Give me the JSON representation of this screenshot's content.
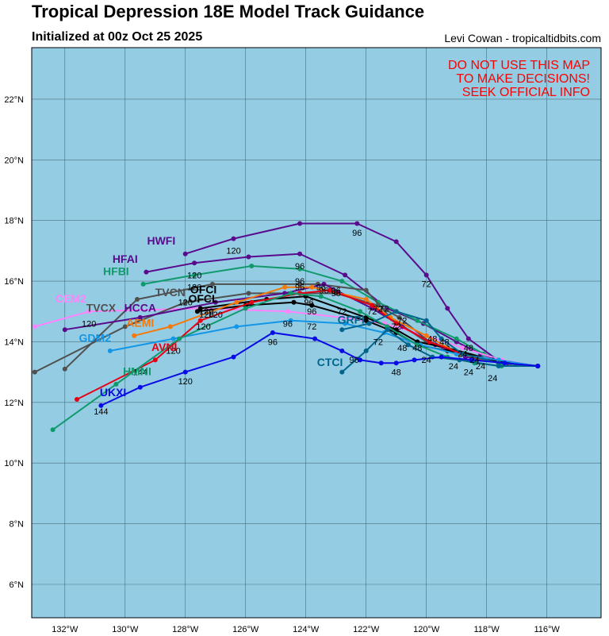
{
  "header": {
    "title": "Tropical Depression 18E Model Track Guidance",
    "subtitle": "Initialized at 00z Oct 25 2025",
    "credit": "Levi Cowan - tropicaltidbits.com"
  },
  "warning": [
    "DO NOT USE THIS MAP",
    "TO MAKE DECISIONS!",
    "SEEK OFFICIAL INFO"
  ],
  "map": {
    "lon_range": [
      -133.1,
      -114.2
    ],
    "lat_range": [
      4.9,
      23.7
    ],
    "ocean_color": "#94cde3",
    "grid_color": "#4a6e7c",
    "lon_ticks": [
      {
        "value": -132,
        "label": "132°W"
      },
      {
        "value": -130,
        "label": "130°W"
      },
      {
        "value": -128,
        "label": "128°W"
      },
      {
        "value": -126,
        "label": "126°W"
      },
      {
        "value": -124,
        "label": "124°W"
      },
      {
        "value": -122,
        "label": "122°W"
      },
      {
        "value": -120,
        "label": "120°W"
      },
      {
        "value": -118,
        "label": "118°W"
      },
      {
        "value": -116,
        "label": "116°W"
      }
    ],
    "lat_ticks": [
      {
        "value": 6,
        "label": "6°N"
      },
      {
        "value": 8,
        "label": "8°N"
      },
      {
        "value": 10,
        "label": "10°N"
      },
      {
        "value": 12,
        "label": "12°N"
      },
      {
        "value": 14,
        "label": "14°N"
      },
      {
        "value": 16,
        "label": "16°N"
      },
      {
        "value": 18,
        "label": "18°N"
      },
      {
        "value": 20,
        "label": "20°N"
      },
      {
        "value": 22,
        "label": "22°N"
      }
    ]
  },
  "models": [
    {
      "name": "HWFI",
      "color": "#5a0a8c",
      "track": [
        [
          -116.3,
          13.2
        ],
        [
          -117.5,
          13.3
        ],
        [
          -118.6,
          14.1
        ],
        [
          -119.3,
          15.1
        ],
        [
          -120.0,
          16.2
        ],
        [
          -121.0,
          17.3
        ],
        [
          -122.3,
          17.9
        ],
        [
          -124.2,
          17.9
        ],
        [
          -126.4,
          17.4
        ],
        [
          -128.0,
          16.9
        ]
      ],
      "hour_labels": [
        {
          "lon": -118.6,
          "lat": 13.7,
          "text": "48"
        },
        {
          "lon": -120.0,
          "lat": 15.8,
          "text": "72"
        },
        {
          "lon": -122.3,
          "lat": 17.5,
          "text": "96"
        },
        {
          "lon": -126.4,
          "lat": 16.9,
          "text": "120"
        }
      ],
      "name_pos": {
        "lon": -128.8,
        "lat": 17.2
      }
    },
    {
      "name": "HFAI",
      "color": "#5a0a8c",
      "track": [
        [
          -116.3,
          13.2
        ],
        [
          -117.3,
          13.3
        ],
        [
          -118.2,
          13.6
        ],
        [
          -119.0,
          14.0
        ],
        [
          -120.1,
          14.6
        ],
        [
          -121.3,
          15.1
        ],
        [
          -122.7,
          16.2
        ],
        [
          -124.2,
          16.9
        ],
        [
          -125.9,
          16.8
        ],
        [
          -127.7,
          16.6
        ],
        [
          -129.3,
          16.3
        ]
      ],
      "hour_labels": [
        {
          "lon": -124.2,
          "lat": 16.4,
          "text": "96"
        },
        {
          "lon": -127.7,
          "lat": 16.1,
          "text": "120"
        }
      ],
      "name_pos": {
        "lon": -130.0,
        "lat": 16.6
      }
    },
    {
      "name": "HFBI",
      "color": "#109a6c",
      "track": [
        [
          -116.3,
          13.2
        ],
        [
          -117.2,
          13.3
        ],
        [
          -118.1,
          13.6
        ],
        [
          -119.0,
          14.1
        ],
        [
          -120.3,
          14.7
        ],
        [
          -121.6,
          15.3
        ],
        [
          -122.8,
          16.0
        ],
        [
          -124.2,
          16.4
        ],
        [
          -125.8,
          16.5
        ],
        [
          -127.7,
          16.2
        ],
        [
          -129.4,
          15.9
        ]
      ],
      "hour_labels": [
        {
          "lon": -124.2,
          "lat": 15.9,
          "text": "96"
        },
        {
          "lon": -127.7,
          "lat": 15.7,
          "text": "120"
        }
      ],
      "name_pos": {
        "lon": -130.3,
        "lat": 16.2
      }
    },
    {
      "name": "CEM2",
      "color": "#ff82ff",
      "track": [
        [
          -116.3,
          13.2
        ],
        [
          -117.5,
          13.4
        ],
        [
          -118.8,
          13.8
        ],
        [
          -120.0,
          14.2
        ],
        [
          -121.4,
          14.6
        ],
        [
          -122.8,
          14.8
        ],
        [
          -124.6,
          15.0
        ],
        [
          -127.5,
          15.1
        ],
        [
          -131.2,
          15.0
        ],
        [
          -133.0,
          14.5
        ]
      ],
      "hour_labels": [
        {
          "lon": -124.6,
          "lat": 14.5,
          "text": "96"
        },
        {
          "lon": -131.2,
          "lat": 14.5,
          "text": "120"
        }
      ],
      "name_pos": {
        "lon": -131.8,
        "lat": 15.3
      }
    },
    {
      "name": "TVCX",
      "color": "#505050",
      "track": [
        [
          -116.3,
          13.2
        ],
        [
          -117.6,
          13.3
        ],
        [
          -118.9,
          13.6
        ],
        [
          -120.0,
          14.0
        ],
        [
          -121.2,
          14.8
        ],
        [
          -122.0,
          15.7
        ],
        [
          -123.6,
          15.9
        ],
        [
          -124.2,
          15.9
        ],
        [
          -127.1,
          15.9
        ],
        [
          -129.6,
          15.4
        ],
        [
          -132.0,
          13.1
        ]
      ],
      "hour_labels": [
        {
          "lon": -128.0,
          "lat": 15.2,
          "text": "120"
        }
      ],
      "name_pos": {
        "lon": -130.8,
        "lat": 15.0
      }
    },
    {
      "name": "TVCN",
      "color": "#505050",
      "track": [
        [
          -116.3,
          13.2
        ],
        [
          -117.5,
          13.3
        ],
        [
          -118.7,
          13.6
        ],
        [
          -119.9,
          14.0
        ],
        [
          -120.9,
          14.8
        ],
        [
          -121.6,
          15.2
        ],
        [
          -123.0,
          15.6
        ],
        [
          -124.2,
          15.6
        ],
        [
          -125.9,
          15.6
        ],
        [
          -128.0,
          15.3
        ],
        [
          -130.0,
          14.5
        ],
        [
          -133.0,
          13.0
        ]
      ],
      "hour_labels": [
        {
          "lon": -121.6,
          "lat": 15.0,
          "text": "72"
        }
      ],
      "name_pos": {
        "lon": -128.5,
        "lat": 15.5
      }
    },
    {
      "name": "HCCA",
      "color": "#5a0a8c",
      "track": [
        [
          -116.3,
          13.2
        ],
        [
          -117.5,
          13.3
        ],
        [
          -118.7,
          13.5
        ],
        [
          -119.7,
          13.9
        ],
        [
          -120.8,
          14.5
        ],
        [
          -121.8,
          15.1
        ],
        [
          -123.4,
          15.9
        ],
        [
          -124.7,
          15.6
        ],
        [
          -127.0,
          15.3
        ],
        [
          -129.5,
          14.8
        ],
        [
          -132.0,
          14.4
        ]
      ],
      "hour_labels": [
        {
          "lon": -123.4,
          "lat": 15.6,
          "text": "96"
        },
        {
          "lon": -127.0,
          "lat": 14.8,
          "text": "120"
        }
      ],
      "name_pos": {
        "lon": -129.5,
        "lat": 15.0
      }
    },
    {
      "name": "OFCL",
      "color": "#000000",
      "track": [
        [
          -116.3,
          13.2
        ],
        [
          -117.8,
          13.4
        ],
        [
          -119.3,
          13.7
        ],
        [
          -120.3,
          13.9
        ],
        [
          -121.0,
          14.3
        ],
        [
          -122.0,
          14.7
        ],
        [
          -123.8,
          15.2
        ],
        [
          -124.4,
          15.3
        ],
        [
          -126.0,
          15.2
        ],
        [
          -127.6,
          15.0
        ]
      ],
      "hour_labels": [
        {
          "lon": -123.8,
          "lat": 14.9,
          "text": "96"
        },
        {
          "lon": -127.3,
          "lat": 14.8,
          "text": "120"
        }
      ],
      "name_pos": {
        "lon": -127.4,
        "lat": 15.3
      }
    },
    {
      "name": "OFCI",
      "color": "#000000",
      "track": [
        [
          -116.3,
          13.2
        ],
        [
          -117.8,
          13.4
        ],
        [
          -119.3,
          13.8
        ],
        [
          -120.3,
          14.0
        ],
        [
          -121.0,
          14.4
        ],
        [
          -122.0,
          14.8
        ],
        [
          -124.0,
          15.5
        ],
        [
          -125.3,
          15.4
        ],
        [
          -127.5,
          15.1
        ]
      ],
      "hour_labels": [
        {
          "lon": -123.9,
          "lat": 15.2,
          "text": "96"
        },
        {
          "lon": -127.3,
          "lat": 14.9,
          "text": "120"
        }
      ],
      "name_pos": {
        "lon": -127.4,
        "lat": 15.6
      }
    },
    {
      "name": "AEMI",
      "color": "#f5780a",
      "track": [
        [
          -116.3,
          13.2
        ],
        [
          -117.6,
          13.3
        ],
        [
          -118.9,
          13.6
        ],
        [
          -120.0,
          14.2
        ],
        [
          -121.2,
          14.8
        ],
        [
          -122.0,
          15.4
        ],
        [
          -123.8,
          15.8
        ],
        [
          -124.7,
          15.8
        ],
        [
          -126.3,
          15.3
        ],
        [
          -128.5,
          14.5
        ],
        [
          -129.7,
          14.2
        ]
      ],
      "hour_labels": [
        {
          "lon": -123.0,
          "lat": 15.5,
          "text": "96"
        }
      ],
      "name_pos": {
        "lon": -129.5,
        "lat": 14.5
      }
    },
    {
      "name": "GDM2",
      "color": "#1496e6",
      "track": [
        [
          -116.3,
          13.2
        ],
        [
          -117.6,
          13.4
        ],
        [
          -119.0,
          13.6
        ],
        [
          -120.2,
          13.9
        ],
        [
          -121.4,
          14.3
        ],
        [
          -122.7,
          14.6
        ],
        [
          -124.5,
          14.7
        ],
        [
          -126.3,
          14.5
        ],
        [
          -128.4,
          14.1
        ],
        [
          -130.5,
          13.7
        ]
      ],
      "hour_labels": [
        {
          "lon": -123.8,
          "lat": 14.4,
          "text": "72"
        },
        {
          "lon": -128.4,
          "lat": 13.6,
          "text": "120"
        }
      ],
      "name_pos": {
        "lon": -131.0,
        "lat": 14.0
      }
    },
    {
      "name": "AVNI",
      "color": "#e60014",
      "track": [
        [
          -116.3,
          13.2
        ],
        [
          -117.6,
          13.3
        ],
        [
          -118.8,
          13.6
        ],
        [
          -119.9,
          14.0
        ],
        [
          -121.0,
          14.6
        ],
        [
          -121.8,
          15.2
        ],
        [
          -123.2,
          15.7
        ],
        [
          -124.2,
          15.6
        ],
        [
          -125.8,
          15.3
        ],
        [
          -127.5,
          14.7
        ],
        [
          -129.0,
          13.4
        ],
        [
          -131.6,
          12.1
        ]
      ],
      "hour_labels": [
        {
          "lon": -124.2,
          "lat": 15.7,
          "text": "96"
        },
        {
          "lon": -127.4,
          "lat": 14.4,
          "text": "120"
        },
        {
          "lon": -129.5,
          "lat": 12.9,
          "text": "144"
        }
      ],
      "name_pos": {
        "lon": -128.7,
        "lat": 13.7
      }
    },
    {
      "name": "HMNI",
      "color": "#109a6c",
      "track": [
        [
          -116.3,
          13.2
        ],
        [
          -117.5,
          13.2
        ],
        [
          -118.4,
          13.3
        ],
        [
          -119.3,
          13.5
        ],
        [
          -120.3,
          13.9
        ],
        [
          -121.3,
          14.5
        ],
        [
          -122.2,
          15.0
        ],
        [
          -123.5,
          15.5
        ],
        [
          -124.5,
          15.6
        ],
        [
          -126.0,
          15.1
        ],
        [
          -128.2,
          14.1
        ],
        [
          -130.3,
          12.6
        ],
        [
          -132.4,
          11.1
        ]
      ],
      "hour_labels": [],
      "name_pos": {
        "lon": -129.6,
        "lat": 12.9
      }
    },
    {
      "name": "GRPI",
      "color": "#00648c",
      "track": [
        [
          -116.3,
          13.2
        ],
        [
          -117.6,
          13.3
        ],
        [
          -118.8,
          13.6
        ],
        [
          -119.5,
          14.1
        ],
        [
          -120.0,
          14.7
        ],
        [
          -121.0,
          15.0
        ],
        [
          -121.9,
          14.6
        ],
        [
          -122.8,
          14.4
        ]
      ],
      "hour_labels": [
        {
          "lon": -121.0,
          "lat": 14.4,
          "text": "72"
        }
      ],
      "name_pos": {
        "lon": -122.5,
        "lat": 14.6
      }
    },
    {
      "name": "CTCI",
      "color": "#00648c",
      "track": [
        [
          -116.3,
          13.2
        ],
        [
          -117.6,
          13.2
        ],
        [
          -118.9,
          13.4
        ],
        [
          -119.8,
          13.5
        ],
        [
          -120.6,
          13.9
        ],
        [
          -121.3,
          14.4
        ],
        [
          -122.0,
          13.7
        ],
        [
          -122.8,
          13.0
        ]
      ],
      "hour_labels": [
        {
          "lon": -121.6,
          "lat": 13.9,
          "text": "72"
        },
        {
          "lon": -121.0,
          "lat": 12.9,
          "text": "48"
        },
        {
          "lon": -122.4,
          "lat": 13.3,
          "text": "96"
        }
      ],
      "name_pos": {
        "lon": -123.2,
        "lat": 13.2
      }
    },
    {
      "name": "UKXI",
      "color": "#0a0ae6",
      "track": [
        [
          -116.3,
          13.2
        ],
        [
          -117.4,
          13.3
        ],
        [
          -118.5,
          13.4
        ],
        [
          -119.5,
          13.5
        ],
        [
          -120.4,
          13.4
        ],
        [
          -121.0,
          13.3
        ],
        [
          -121.5,
          13.3
        ],
        [
          -122.2,
          13.4
        ],
        [
          -122.8,
          13.7
        ],
        [
          -123.7,
          14.1
        ],
        [
          -125.1,
          14.3
        ],
        [
          -126.4,
          13.5
        ],
        [
          -128.0,
          13.0
        ],
        [
          -129.5,
          12.5
        ],
        [
          -130.8,
          11.9
        ]
      ],
      "hour_labels": [
        {
          "lon": -125.1,
          "lat": 13.9,
          "text": "96"
        },
        {
          "lon": -128.0,
          "lat": 12.6,
          "text": "120"
        },
        {
          "lon": -130.8,
          "lat": 11.6,
          "text": "144"
        }
      ],
      "name_pos": {
        "lon": -130.4,
        "lat": 12.2
      }
    }
  ],
  "extra_hour_labels": [
    {
      "lon": -118.6,
      "lat": 12.9,
      "text": "24"
    },
    {
      "lon": -118.2,
      "lat": 13.1,
      "text": "24"
    },
    {
      "lon": -117.8,
      "lat": 12.7,
      "text": "24"
    },
    {
      "lon": -119.1,
      "lat": 13.1,
      "text": "24"
    },
    {
      "lon": -118.4,
      "lat": 13.3,
      "text": "24"
    },
    {
      "lon": -120.0,
      "lat": 13.3,
      "text": "24"
    },
    {
      "lon": -120.3,
      "lat": 13.7,
      "text": "48"
    },
    {
      "lon": -119.8,
      "lat": 14.0,
      "text": "48"
    },
    {
      "lon": -119.4,
      "lat": 13.9,
      "text": "48"
    },
    {
      "lon": -118.8,
      "lat": 13.5,
      "text": "24"
    },
    {
      "lon": -120.8,
      "lat": 13.7,
      "text": "48"
    },
    {
      "lon": -121.4,
      "lat": 15.0,
      "text": "72"
    },
    {
      "lon": -120.8,
      "lat": 14.6,
      "text": "72"
    },
    {
      "lon": -121.8,
      "lat": 14.9,
      "text": "72"
    },
    {
      "lon": -122.8,
      "lat": 14.9,
      "text": "72"
    },
    {
      "lon": -123.5,
      "lat": 15.7,
      "text": "96"
    },
    {
      "lon": -123.0,
      "lat": 15.6,
      "text": "96"
    }
  ]
}
